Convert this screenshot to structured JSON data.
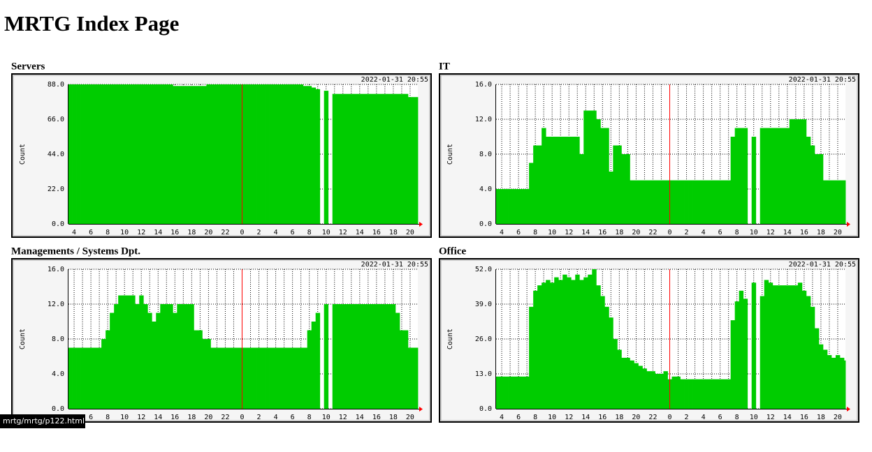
{
  "page": {
    "title": "MRTG Index Page",
    "status_bar": "mrtg/mrtg/p122.html"
  },
  "chart_data": [
    {
      "type": "bar",
      "title": "Servers",
      "timestamp": "2022-01-31 20:55",
      "y_label": "Count",
      "color": "#00cc00",
      "grid": true,
      "vline": {
        "x": 24,
        "color": "#ff0000"
      },
      "xlim": [
        3.33,
        44.92
      ],
      "ylim": [
        0,
        88
      ],
      "xticks": [
        4,
        6,
        8,
        10,
        12,
        14,
        16,
        18,
        20,
        22,
        {
          "value": 24,
          "label": "0"
        },
        {
          "value": 26,
          "label": "2"
        },
        {
          "value": 28,
          "label": "4"
        },
        {
          "value": 30,
          "label": "6"
        },
        {
          "value": 32,
          "label": "8"
        },
        {
          "value": 34,
          "label": "10"
        },
        {
          "value": 36,
          "label": "12"
        },
        {
          "value": 38,
          "label": "14"
        },
        {
          "value": 40,
          "label": "16"
        },
        {
          "value": 42,
          "label": "18"
        },
        {
          "value": 44,
          "label": "20"
        }
      ],
      "yticks": [
        {
          "value": 0,
          "label": "0.0"
        },
        {
          "value": 22,
          "label": "22.0"
        },
        {
          "value": 44,
          "label": "44.0"
        },
        {
          "value": 66,
          "label": "66.0"
        },
        {
          "value": 88,
          "label": "88.0"
        }
      ],
      "x": [
        3.5,
        4,
        4.5,
        5,
        5.5,
        6,
        6.5,
        7,
        7.5,
        8,
        8.5,
        9,
        9.5,
        10,
        10.5,
        11,
        11.5,
        12,
        12.5,
        13,
        13.5,
        14,
        14.5,
        15,
        15.5,
        16,
        16.5,
        17,
        17.5,
        18,
        18.5,
        19,
        19.5,
        20,
        20.5,
        21,
        21.5,
        22,
        22.5,
        23,
        23.5,
        24,
        24.5,
        25,
        25.5,
        26,
        26.5,
        27,
        27.5,
        28,
        28.5,
        29,
        29.5,
        30,
        30.5,
        31,
        31.5,
        32,
        32.5,
        33,
        33.5,
        34,
        34.5,
        35,
        35.5,
        36,
        36.5,
        37,
        37.5,
        38,
        38.5,
        39,
        39.5,
        40,
        40.5,
        41,
        41.5,
        42,
        42.5,
        43,
        43.5,
        44,
        44.5,
        45
      ],
      "values": [
        88,
        88,
        88,
        88,
        88,
        88,
        88,
        88,
        88,
        88,
        88,
        88,
        88,
        88,
        88,
        88,
        88,
        88,
        88,
        88,
        88,
        88,
        88,
        88,
        88,
        87,
        87,
        87,
        87,
        87,
        87,
        87,
        87,
        88,
        88,
        88,
        88,
        88,
        88,
        88,
        88,
        88,
        88,
        88,
        88,
        88,
        88,
        88,
        88,
        88,
        88,
        88,
        88,
        88,
        88,
        88,
        87,
        87,
        86,
        85,
        0,
        84,
        0,
        82,
        82,
        82,
        82,
        82,
        82,
        82,
        82,
        82,
        82,
        82,
        82,
        82,
        82,
        82,
        82,
        82,
        82,
        80,
        80,
        80
      ]
    },
    {
      "type": "bar",
      "title": "IT",
      "timestamp": "2022-01-31 20:55",
      "y_label": "Count",
      "color": "#00cc00",
      "grid": true,
      "vline": {
        "x": 24,
        "color": "#ff0000"
      },
      "xlim": [
        3.33,
        44.92
      ],
      "ylim": [
        0,
        16
      ],
      "xticks": [
        4,
        6,
        8,
        10,
        12,
        14,
        16,
        18,
        20,
        22,
        {
          "value": 24,
          "label": "0"
        },
        {
          "value": 26,
          "label": "2"
        },
        {
          "value": 28,
          "label": "4"
        },
        {
          "value": 30,
          "label": "6"
        },
        {
          "value": 32,
          "label": "8"
        },
        {
          "value": 34,
          "label": "10"
        },
        {
          "value": 36,
          "label": "12"
        },
        {
          "value": 38,
          "label": "14"
        },
        {
          "value": 40,
          "label": "16"
        },
        {
          "value": 42,
          "label": "18"
        },
        {
          "value": 44,
          "label": "20"
        }
      ],
      "yticks": [
        {
          "value": 0,
          "label": "0.0"
        },
        {
          "value": 4,
          "label": "4.0"
        },
        {
          "value": 8,
          "label": "8.0"
        },
        {
          "value": 12,
          "label": "12.0"
        },
        {
          "value": 16,
          "label": "16.0"
        }
      ],
      "x": [
        3.5,
        4,
        4.5,
        5,
        5.5,
        6,
        6.5,
        7,
        7.5,
        8,
        8.5,
        9,
        9.5,
        10,
        10.5,
        11,
        11.5,
        12,
        12.5,
        13,
        13.5,
        14,
        14.5,
        15,
        15.5,
        16,
        16.5,
        17,
        17.5,
        18,
        18.5,
        19,
        19.5,
        20,
        20.5,
        21,
        21.5,
        22,
        22.5,
        23,
        23.5,
        24,
        24.5,
        25,
        25.5,
        26,
        26.5,
        27,
        27.5,
        28,
        28.5,
        29,
        29.5,
        30,
        30.5,
        31,
        31.5,
        32,
        32.5,
        33,
        33.5,
        34,
        34.5,
        35,
        35.5,
        36,
        36.5,
        37,
        37.5,
        38,
        38.5,
        39,
        39.5,
        40,
        40.5,
        41,
        41.5,
        42,
        42.5,
        43,
        43.5,
        44,
        44.5,
        45
      ],
      "values": [
        4,
        4,
        4,
        4,
        4,
        4,
        4,
        4,
        7,
        9,
        9,
        11,
        10,
        10,
        10,
        10,
        10,
        10,
        10,
        10,
        8,
        13,
        13,
        13,
        12,
        11,
        11,
        6,
        9,
        9,
        8,
        8,
        5,
        5,
        5,
        5,
        5,
        5,
        5,
        5,
        5,
        5,
        5,
        5,
        5,
        5,
        5,
        5,
        5,
        5,
        5,
        5,
        5,
        5,
        5,
        5,
        10,
        11,
        11,
        11,
        0,
        10,
        0,
        11,
        11,
        11,
        11,
        11,
        11,
        11,
        12,
        12,
        12,
        12,
        10,
        9,
        8,
        8,
        5,
        5,
        5,
        5,
        5,
        5
      ]
    },
    {
      "type": "bar",
      "title": "Managements / Systems Dpt.",
      "timestamp": "2022-01-31 20:55",
      "y_label": "Count",
      "color": "#00cc00",
      "grid": true,
      "vline": {
        "x": 24,
        "color": "#ff0000"
      },
      "xlim": [
        3.33,
        44.92
      ],
      "ylim": [
        0,
        16
      ],
      "xticks": [
        4,
        6,
        8,
        10,
        12,
        14,
        16,
        18,
        20,
        22,
        {
          "value": 24,
          "label": "0"
        },
        {
          "value": 26,
          "label": "2"
        },
        {
          "value": 28,
          "label": "4"
        },
        {
          "value": 30,
          "label": "6"
        },
        {
          "value": 32,
          "label": "8"
        },
        {
          "value": 34,
          "label": "10"
        },
        {
          "value": 36,
          "label": "12"
        },
        {
          "value": 38,
          "label": "14"
        },
        {
          "value": 40,
          "label": "16"
        },
        {
          "value": 42,
          "label": "18"
        },
        {
          "value": 44,
          "label": "20"
        }
      ],
      "yticks": [
        {
          "value": 0,
          "label": "0.0"
        },
        {
          "value": 4,
          "label": "4.0"
        },
        {
          "value": 8,
          "label": "8.0"
        },
        {
          "value": 12,
          "label": "12.0"
        },
        {
          "value": 16,
          "label": "16.0"
        }
      ],
      "x": [
        3.5,
        4,
        4.5,
        5,
        5.5,
        6,
        6.5,
        7,
        7.5,
        8,
        8.5,
        9,
        9.5,
        10,
        10.5,
        11,
        11.5,
        12,
        12.5,
        13,
        13.5,
        14,
        14.5,
        15,
        15.5,
        16,
        16.5,
        17,
        17.5,
        18,
        18.5,
        19,
        19.5,
        20,
        20.5,
        21,
        21.5,
        22,
        22.5,
        23,
        23.5,
        24,
        24.5,
        25,
        25.5,
        26,
        26.5,
        27,
        27.5,
        28,
        28.5,
        29,
        29.5,
        30,
        30.5,
        31,
        31.5,
        32,
        32.5,
        33,
        33.5,
        34,
        34.5,
        35,
        35.5,
        36,
        36.5,
        37,
        37.5,
        38,
        38.5,
        39,
        39.5,
        40,
        40.5,
        41,
        41.5,
        42,
        42.5,
        43,
        43.5,
        44,
        44.5,
        45
      ],
      "values": [
        7,
        7,
        7,
        7,
        7,
        7,
        7,
        7,
        8,
        9,
        11,
        12,
        13,
        13,
        13,
        13,
        12,
        13,
        12,
        11,
        10,
        11,
        12,
        12,
        12,
        11,
        12,
        12,
        12,
        12,
        9,
        9,
        8,
        8,
        7,
        7,
        7,
        7,
        7,
        7,
        7,
        7,
        7,
        7,
        7,
        7,
        7,
        7,
        7,
        7,
        7,
        7,
        7,
        7,
        7,
        7,
        7,
        9,
        10,
        11,
        0,
        12,
        0,
        12,
        12,
        12,
        12,
        12,
        12,
        12,
        12,
        12,
        12,
        12,
        12,
        12,
        12,
        12,
        11,
        9,
        9,
        7,
        7,
        7
      ]
    },
    {
      "type": "bar",
      "title": "Office",
      "timestamp": "2022-01-31 20:55",
      "y_label": "Count",
      "color": "#00cc00",
      "grid": true,
      "vline": {
        "x": 24,
        "color": "#ff0000"
      },
      "xlim": [
        3.33,
        44.92
      ],
      "ylim": [
        0,
        52
      ],
      "xticks": [
        4,
        6,
        8,
        10,
        12,
        14,
        16,
        18,
        20,
        22,
        {
          "value": 24,
          "label": "0"
        },
        {
          "value": 26,
          "label": "2"
        },
        {
          "value": 28,
          "label": "4"
        },
        {
          "value": 30,
          "label": "6"
        },
        {
          "value": 32,
          "label": "8"
        },
        {
          "value": 34,
          "label": "10"
        },
        {
          "value": 36,
          "label": "12"
        },
        {
          "value": 38,
          "label": "14"
        },
        {
          "value": 40,
          "label": "16"
        },
        {
          "value": 42,
          "label": "18"
        },
        {
          "value": 44,
          "label": "20"
        }
      ],
      "yticks": [
        {
          "value": 0,
          "label": "0.0"
        },
        {
          "value": 13,
          "label": "13.0"
        },
        {
          "value": 26,
          "label": "26.0"
        },
        {
          "value": 39,
          "label": "39.0"
        },
        {
          "value": 52,
          "label": "52.0"
        }
      ],
      "x": [
        3.5,
        4,
        4.5,
        5,
        5.5,
        6,
        6.5,
        7,
        7.5,
        8,
        8.5,
        9,
        9.5,
        10,
        10.5,
        11,
        11.5,
        12,
        12.5,
        13,
        13.5,
        14,
        14.5,
        15,
        15.5,
        16,
        16.5,
        17,
        17.5,
        18,
        18.5,
        19,
        19.5,
        20,
        20.5,
        21,
        21.5,
        22,
        22.5,
        23,
        23.5,
        24,
        24.5,
        25,
        25.5,
        26,
        26.5,
        27,
        27.5,
        28,
        28.5,
        29,
        29.5,
        30,
        30.5,
        31,
        31.5,
        32,
        32.5,
        33,
        33.5,
        34,
        34.5,
        35,
        35.5,
        36,
        36.5,
        37,
        37.5,
        38,
        38.5,
        39,
        39.5,
        40,
        40.5,
        41,
        41.5,
        42,
        42.5,
        43,
        43.5,
        44,
        44.5,
        45
      ],
      "values": [
        12,
        12,
        12,
        12,
        12,
        12,
        12,
        12,
        38,
        44,
        46,
        47,
        48,
        47,
        49,
        48,
        50,
        49,
        48,
        50,
        48,
        49,
        50,
        52,
        46,
        42,
        38,
        34,
        26,
        22,
        19,
        19,
        18,
        17,
        16,
        15,
        14,
        14,
        13,
        13,
        14,
        11,
        12,
        12,
        11,
        11,
        11,
        11,
        11,
        11,
        11,
        11,
        11,
        11,
        11,
        11,
        33,
        40,
        44,
        41,
        0,
        47,
        0,
        42,
        48,
        47,
        46,
        46,
        46,
        46,
        46,
        46,
        47,
        44,
        42,
        38,
        30,
        24,
        22,
        20,
        19,
        20,
        19,
        18
      ]
    }
  ]
}
